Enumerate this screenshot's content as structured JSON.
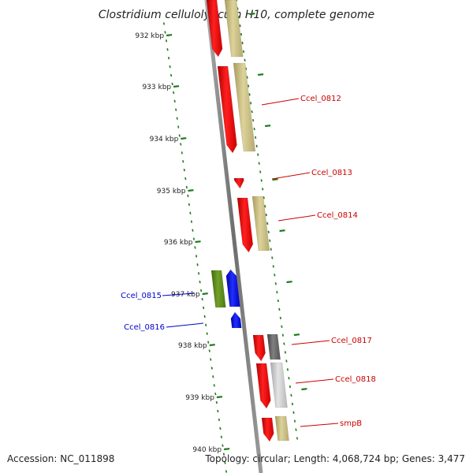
{
  "title": "Clostridium cellulolyticum H10, complete genome",
  "accession": "Accession: NC_011898",
  "stats": "Topology: circular; Length: 4,068,724 bp; Genes: 3,477",
  "colors": {
    "forward_cds": "#ff0000",
    "reverse_cds": "#0000ff",
    "khaki_feature": "#c8bd80",
    "olive_feature": "#5a8a1a",
    "dark_gray_feature": "#666666",
    "light_gray_feature": "#c8c8c8",
    "backbone": "#888888",
    "tick_marks": "#1a7a1a",
    "forward_label": "#cc0000",
    "reverse_label": "#0000cc"
  },
  "ticks": [
    "932 kbp",
    "933 kbp",
    "934 kbp",
    "935 kbp",
    "936 kbp",
    "937 kbp",
    "938 kbp",
    "939 kbp",
    "940 kbp"
  ],
  "genes": [
    {
      "label": "Ccel_0812",
      "strand": "forward"
    },
    {
      "label": "Ccel_0813",
      "strand": "forward"
    },
    {
      "label": "Ccel_0814",
      "strand": "forward"
    },
    {
      "label": "Ccel_0815",
      "strand": "reverse"
    },
    {
      "label": "Ccel_0816",
      "strand": "reverse"
    },
    {
      "label": "Ccel_0817",
      "strand": "forward"
    },
    {
      "label": "Ccel_0818",
      "strand": "forward"
    },
    {
      "label": "smpB",
      "strand": "forward"
    }
  ]
}
